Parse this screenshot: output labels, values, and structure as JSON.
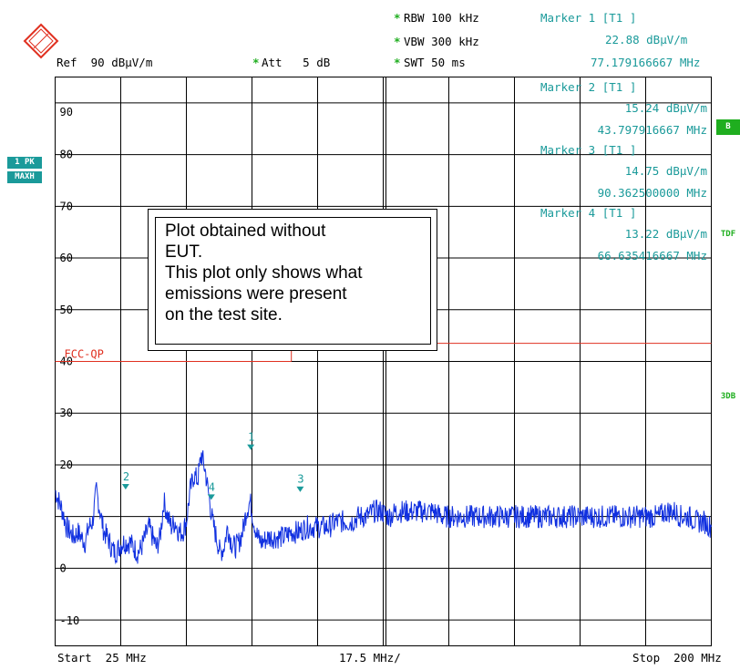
{
  "header": {
    "rbw": "RBW 100 kHz",
    "vbw": "VBW 300 kHz",
    "swt": "SWT 50 ms",
    "ref": "Ref  90 dBµV/m",
    "att": "Att   5 dB",
    "star": "*"
  },
  "markers_header": {
    "line1": "Marker 1 [T1 ]",
    "line2": "22.88 dBµV/m",
    "line3": "77.179166667 MHz"
  },
  "side_labels": {
    "pk": "1 PK",
    "maxh": "MAXH",
    "b": "B",
    "tdf": "TDF",
    "db3": "3DB"
  },
  "note": {
    "line1": "Plot obtained without",
    "line2": "EUT.",
    "line3": "This plot only shows what",
    "line4": "emissions were present",
    "line5": "on the test site."
  },
  "footer": {
    "start": "Start  25 MHz",
    "span": "17.5 MHz/",
    "stop": "Stop  200 MHz"
  },
  "colors": {
    "trace": "#1030e0",
    "limit": "#e03020",
    "marker": "#1a9a9a",
    "grid": "#000000",
    "side": "#1fae1f"
  },
  "chart_data": {
    "type": "line",
    "xlabel": "",
    "ylabel": "",
    "x_start_mhz": 25,
    "x_stop_mhz": 200,
    "x_div_mhz": 17.5,
    "ylim": [
      -15,
      95
    ],
    "y_ticks": [
      90,
      80,
      70,
      60,
      50,
      40,
      30,
      20,
      10,
      0,
      -10
    ],
    "y_tick_labels": [
      "90",
      "80",
      "70",
      "60",
      "50",
      "40",
      "30",
      "20",
      "",
      "0",
      "-10"
    ],
    "limit_line": {
      "name": "FCC-QP",
      "segments": [
        {
          "x": [
            25,
            88
          ],
          "y": [
            40,
            40
          ]
        },
        {
          "x": [
            88,
            88
          ],
          "y": [
            40,
            43.5
          ]
        },
        {
          "x": [
            88,
            216
          ],
          "y": [
            43.5,
            43.5
          ]
        }
      ]
    },
    "series": [
      {
        "name": "1 PK MAXH",
        "points": [
          [
            25,
            15
          ],
          [
            26,
            13
          ],
          [
            27,
            11
          ],
          [
            28,
            8
          ],
          [
            29,
            7
          ],
          [
            30,
            6
          ],
          [
            31,
            7
          ],
          [
            32,
            6
          ],
          [
            33,
            5
          ],
          [
            34,
            8
          ],
          [
            35,
            9
          ],
          [
            36,
            15
          ],
          [
            37,
            11
          ],
          [
            38,
            7
          ],
          [
            39,
            6
          ],
          [
            40,
            4
          ],
          [
            41,
            3
          ],
          [
            42,
            4
          ],
          [
            43,
            5
          ],
          [
            44,
            5
          ],
          [
            45,
            5
          ],
          [
            46,
            4
          ],
          [
            47,
            3
          ],
          [
            48,
            4
          ],
          [
            49,
            6
          ],
          [
            50,
            8
          ],
          [
            51,
            6
          ],
          [
            52,
            4
          ],
          [
            53,
            6
          ],
          [
            54,
            13
          ],
          [
            55,
            10
          ],
          [
            56,
            8
          ],
          [
            57,
            9
          ],
          [
            58,
            7
          ],
          [
            59,
            7
          ],
          [
            60,
            9
          ],
          [
            61,
            15
          ],
          [
            62,
            18
          ],
          [
            63,
            17
          ],
          [
            64,
            22
          ],
          [
            65,
            19
          ],
          [
            66,
            14
          ],
          [
            67,
            9
          ],
          [
            68,
            6
          ],
          [
            69,
            3
          ],
          [
            70,
            4
          ],
          [
            71,
            8
          ],
          [
            72,
            5
          ],
          [
            73,
            4
          ],
          [
            74,
            5
          ],
          [
            75,
            7
          ],
          [
            76,
            11
          ],
          [
            77,
            13
          ],
          [
            78,
            9
          ],
          [
            79,
            6
          ],
          [
            80,
            5
          ],
          [
            82,
            6
          ],
          [
            84,
            6
          ],
          [
            86,
            6
          ],
          [
            88,
            7
          ],
          [
            90,
            7
          ],
          [
            92,
            8
          ],
          [
            94,
            8
          ],
          [
            96,
            8
          ],
          [
            98,
            8
          ],
          [
            100,
            9
          ],
          [
            102,
            9
          ],
          [
            104,
            9
          ],
          [
            106,
            10
          ],
          [
            108,
            10
          ],
          [
            110,
            11
          ],
          [
            112,
            11
          ],
          [
            114,
            10
          ],
          [
            116,
            11
          ],
          [
            118,
            11
          ],
          [
            120,
            11
          ],
          [
            122,
            11
          ],
          [
            124,
            11
          ],
          [
            126,
            11
          ],
          [
            128,
            10
          ],
          [
            130,
            10
          ],
          [
            132,
            10
          ],
          [
            134,
            10
          ],
          [
            136,
            10
          ],
          [
            138,
            10
          ],
          [
            140,
            10
          ],
          [
            142,
            10
          ],
          [
            144,
            10
          ],
          [
            146,
            10
          ],
          [
            148,
            10
          ],
          [
            150,
            10
          ],
          [
            152,
            10
          ],
          [
            154,
            10
          ],
          [
            156,
            10
          ],
          [
            158,
            10
          ],
          [
            160,
            10
          ],
          [
            162,
            10
          ],
          [
            164,
            10
          ],
          [
            166,
            10
          ],
          [
            168,
            10
          ],
          [
            170,
            10
          ],
          [
            172,
            10
          ],
          [
            174,
            10
          ],
          [
            176,
            10
          ],
          [
            178,
            10
          ],
          [
            180,
            10
          ],
          [
            182,
            10
          ],
          [
            184,
            10
          ],
          [
            186,
            10
          ],
          [
            188,
            11
          ],
          [
            190,
            11
          ],
          [
            192,
            10
          ],
          [
            194,
            10
          ],
          [
            196,
            9
          ],
          [
            198,
            9
          ],
          [
            200,
            8
          ]
        ]
      }
    ],
    "markers": [
      {
        "label": "1",
        "x": 77.179166667,
        "y": 22.88
      },
      {
        "label": "2",
        "x": 43.797916667,
        "y": 15.24
      },
      {
        "label": "3",
        "x": 90.3625,
        "y": 14.75
      },
      {
        "label": "4",
        "x": 66.635416667,
        "y": 13.22
      }
    ],
    "marker_table": [
      {
        "title": "Marker 2 [T1 ]",
        "level": "15.24 dBµV/m",
        "freq": "43.797916667 MHz"
      },
      {
        "title": "Marker 3 [T1 ]",
        "level": "14.75 dBµV/m",
        "freq": "90.362500000 MHz"
      },
      {
        "title": "Marker 4 [T1 ]",
        "level": "13.22 dBµV/m",
        "freq": "66.635416667 MHz"
      }
    ]
  }
}
